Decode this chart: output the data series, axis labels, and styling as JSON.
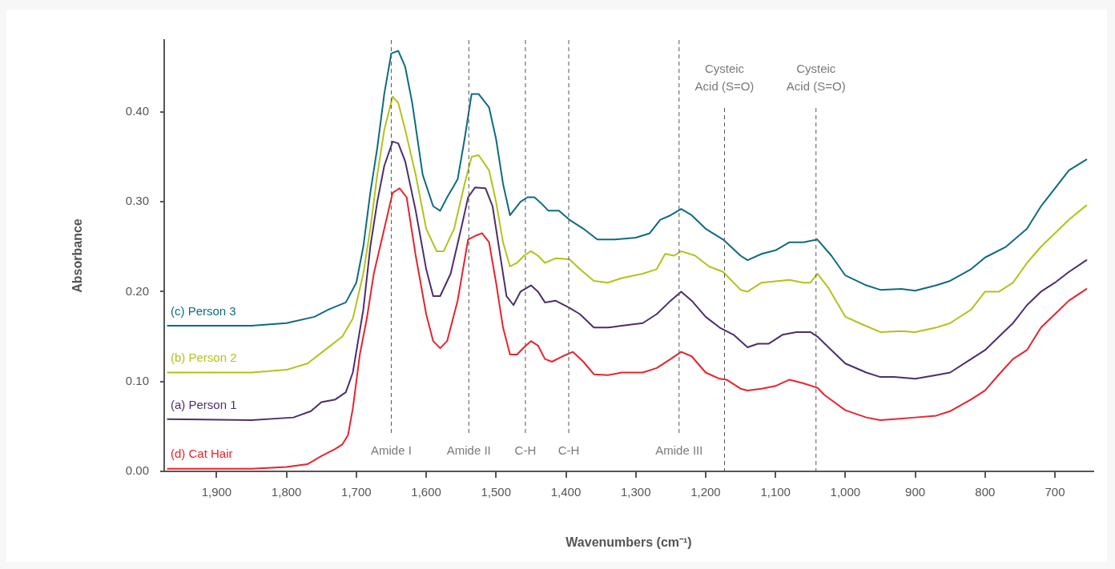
{
  "chart_data": {
    "type": "line",
    "xlabel": "Wavenumbers (cm⁻¹)",
    "ylabel": "Absorbance",
    "xlim": [
      1975,
      645
    ],
    "ylim": [
      0,
      0.48
    ],
    "xticks": [
      {
        "value": 1900,
        "label": "1,900"
      },
      {
        "value": 1800,
        "label": "1,800"
      },
      {
        "value": 1700,
        "label": "1,700"
      },
      {
        "value": 1600,
        "label": "1,600"
      },
      {
        "value": 1500,
        "label": "1,500"
      },
      {
        "value": 1400,
        "label": "1,400"
      },
      {
        "value": 1300,
        "label": "1,300"
      },
      {
        "value": 1200,
        "label": "1,200"
      },
      {
        "value": 1100,
        "label": "1,100"
      },
      {
        "value": 1000,
        "label": "1,000"
      },
      {
        "value": 900,
        "label": "900"
      },
      {
        "value": 800,
        "label": "800"
      },
      {
        "value": 700,
        "label": "700"
      }
    ],
    "yticks": [
      {
        "value": 0,
        "label": "0.00"
      },
      {
        "value": 0.1,
        "label": "0.10"
      },
      {
        "value": 0.2,
        "label": "0.20"
      },
      {
        "value": 0.3,
        "label": "0.30"
      },
      {
        "value": 0.4,
        "label": "0.40"
      }
    ],
    "grid": false,
    "legend": false,
    "marker": "none",
    "line_style": "solid",
    "ref_lines": [
      {
        "axis": "x",
        "value": 1650,
        "label": "Amide I",
        "color": "#555555",
        "line_style": "dashed"
      },
      {
        "axis": "x",
        "value": 1539,
        "label": "Amide II",
        "color": "#555555",
        "line_style": "dashed"
      },
      {
        "axis": "x",
        "value": 1458,
        "label": "C-H",
        "color": "#555555",
        "line_style": "dashed"
      },
      {
        "axis": "x",
        "value": 1396,
        "label": "C-H",
        "color": "#555555",
        "line_style": "dashed"
      },
      {
        "axis": "x",
        "value": 1238,
        "label": "Amide III",
        "color": "#555555",
        "line_style": "dashed"
      },
      {
        "axis": "x",
        "value": 1173,
        "label": "Cysteic Acid (S=O)",
        "color": "#555555",
        "line_style": "dashed"
      },
      {
        "axis": "x",
        "value": 1042,
        "label": "Cysteic Acid (S=O)",
        "color": "#555555",
        "line_style": "dashed"
      }
    ],
    "series": [
      {
        "name": "(c) Person 3",
        "color": "#0e6b80",
        "x": [
          1970,
          1850,
          1800,
          1760,
          1740,
          1715,
          1700,
          1690,
          1680,
          1670,
          1660,
          1650,
          1640,
          1630,
          1620,
          1605,
          1590,
          1580,
          1570,
          1555,
          1545,
          1535,
          1525,
          1510,
          1500,
          1490,
          1480,
          1475,
          1465,
          1455,
          1445,
          1435,
          1425,
          1410,
          1395,
          1375,
          1355,
          1330,
          1300,
          1280,
          1265,
          1250,
          1235,
          1220,
          1200,
          1175,
          1150,
          1140,
          1120,
          1100,
          1080,
          1060,
          1040,
          1020,
          1000,
          970,
          950,
          920,
          900,
          870,
          850,
          820,
          800,
          770,
          740,
          720,
          700,
          680,
          655
        ],
        "values": [
          0.162,
          0.162,
          0.165,
          0.172,
          0.18,
          0.188,
          0.21,
          0.25,
          0.31,
          0.36,
          0.42,
          0.465,
          0.468,
          0.45,
          0.41,
          0.33,
          0.295,
          0.29,
          0.305,
          0.325,
          0.37,
          0.42,
          0.42,
          0.405,
          0.37,
          0.32,
          0.285,
          0.29,
          0.3,
          0.305,
          0.305,
          0.298,
          0.29,
          0.29,
          0.28,
          0.27,
          0.258,
          0.258,
          0.26,
          0.265,
          0.28,
          0.285,
          0.292,
          0.285,
          0.27,
          0.258,
          0.24,
          0.235,
          0.242,
          0.246,
          0.255,
          0.255,
          0.258,
          0.24,
          0.218,
          0.207,
          0.202,
          0.203,
          0.201,
          0.207,
          0.212,
          0.225,
          0.238,
          0.25,
          0.27,
          0.295,
          0.315,
          0.335,
          0.347
        ]
      },
      {
        "name": "(b) Person 2",
        "color": "#b5c11a",
        "x": [
          1970,
          1850,
          1800,
          1770,
          1745,
          1720,
          1705,
          1690,
          1680,
          1670,
          1660,
          1648,
          1640,
          1630,
          1615,
          1600,
          1585,
          1575,
          1560,
          1545,
          1535,
          1525,
          1510,
          1500,
          1490,
          1480,
          1470,
          1460,
          1450,
          1440,
          1430,
          1415,
          1395,
          1380,
          1360,
          1340,
          1320,
          1290,
          1270,
          1258,
          1245,
          1235,
          1215,
          1195,
          1175,
          1150,
          1140,
          1120,
          1080,
          1060,
          1050,
          1040,
          1025,
          1000,
          980,
          950,
          920,
          900,
          870,
          850,
          820,
          800,
          780,
          760,
          740,
          720,
          700,
          680,
          655
        ],
        "values": [
          0.11,
          0.11,
          0.113,
          0.12,
          0.135,
          0.15,
          0.17,
          0.22,
          0.27,
          0.33,
          0.38,
          0.417,
          0.41,
          0.38,
          0.33,
          0.27,
          0.245,
          0.245,
          0.27,
          0.32,
          0.35,
          0.352,
          0.335,
          0.3,
          0.255,
          0.228,
          0.232,
          0.24,
          0.245,
          0.24,
          0.232,
          0.237,
          0.236,
          0.225,
          0.212,
          0.21,
          0.215,
          0.22,
          0.225,
          0.242,
          0.24,
          0.245,
          0.24,
          0.228,
          0.222,
          0.202,
          0.2,
          0.21,
          0.213,
          0.21,
          0.21,
          0.22,
          0.205,
          0.172,
          0.165,
          0.155,
          0.156,
          0.155,
          0.16,
          0.165,
          0.18,
          0.2,
          0.2,
          0.21,
          0.232,
          0.25,
          0.265,
          0.28,
          0.296
        ]
      },
      {
        "name": "(a) Person 1",
        "color": "#4d2e6e",
        "x": [
          1970,
          1850,
          1790,
          1765,
          1750,
          1730,
          1715,
          1705,
          1690,
          1680,
          1670,
          1660,
          1648,
          1640,
          1630,
          1615,
          1600,
          1590,
          1580,
          1565,
          1550,
          1540,
          1530,
          1515,
          1505,
          1495,
          1485,
          1475,
          1465,
          1450,
          1440,
          1430,
          1415,
          1395,
          1380,
          1360,
          1340,
          1320,
          1290,
          1270,
          1250,
          1235,
          1220,
          1200,
          1180,
          1160,
          1140,
          1125,
          1110,
          1090,
          1070,
          1050,
          1040,
          1020,
          1000,
          970,
          950,
          930,
          900,
          870,
          850,
          820,
          800,
          780,
          760,
          740,
          720,
          700,
          680,
          655
        ],
        "values": [
          0.058,
          0.057,
          0.06,
          0.067,
          0.077,
          0.08,
          0.088,
          0.11,
          0.18,
          0.25,
          0.3,
          0.34,
          0.367,
          0.365,
          0.345,
          0.29,
          0.225,
          0.195,
          0.195,
          0.22,
          0.27,
          0.305,
          0.316,
          0.315,
          0.295,
          0.245,
          0.195,
          0.185,
          0.2,
          0.207,
          0.2,
          0.188,
          0.19,
          0.182,
          0.175,
          0.16,
          0.16,
          0.162,
          0.165,
          0.175,
          0.19,
          0.2,
          0.19,
          0.172,
          0.16,
          0.152,
          0.138,
          0.142,
          0.142,
          0.152,
          0.155,
          0.155,
          0.15,
          0.135,
          0.12,
          0.11,
          0.105,
          0.105,
          0.103,
          0.107,
          0.11,
          0.125,
          0.135,
          0.15,
          0.165,
          0.185,
          0.2,
          0.21,
          0.222,
          0.235
        ]
      },
      {
        "name": "(d) Cat Hair",
        "color": "#e8232b",
        "x": [
          1970,
          1850,
          1800,
          1770,
          1750,
          1730,
          1720,
          1712,
          1705,
          1695,
          1685,
          1675,
          1660,
          1648,
          1638,
          1628,
          1615,
          1600,
          1590,
          1580,
          1570,
          1555,
          1540,
          1530,
          1520,
          1510,
          1500,
          1490,
          1480,
          1470,
          1460,
          1450,
          1440,
          1430,
          1420,
          1405,
          1390,
          1375,
          1360,
          1340,
          1320,
          1290,
          1270,
          1250,
          1235,
          1220,
          1200,
          1180,
          1170,
          1150,
          1140,
          1120,
          1100,
          1080,
          1060,
          1040,
          1030,
          1000,
          970,
          950,
          930,
          900,
          870,
          850,
          820,
          800,
          780,
          760,
          740,
          720,
          700,
          680,
          655
        ],
        "values": [
          0.003,
          0.003,
          0.005,
          0.008,
          0.017,
          0.025,
          0.03,
          0.04,
          0.07,
          0.13,
          0.17,
          0.22,
          0.27,
          0.31,
          0.315,
          0.305,
          0.24,
          0.175,
          0.145,
          0.137,
          0.145,
          0.19,
          0.258,
          0.262,
          0.265,
          0.255,
          0.21,
          0.16,
          0.13,
          0.13,
          0.138,
          0.145,
          0.14,
          0.125,
          0.122,
          0.128,
          0.133,
          0.122,
          0.108,
          0.107,
          0.11,
          0.11,
          0.115,
          0.125,
          0.133,
          0.128,
          0.11,
          0.103,
          0.102,
          0.092,
          0.09,
          0.092,
          0.095,
          0.102,
          0.098,
          0.093,
          0.085,
          0.068,
          0.06,
          0.057,
          0.058,
          0.06,
          0.062,
          0.067,
          0.08,
          0.09,
          0.108,
          0.125,
          0.135,
          0.16,
          0.175,
          0.19,
          0.203
        ]
      }
    ]
  }
}
